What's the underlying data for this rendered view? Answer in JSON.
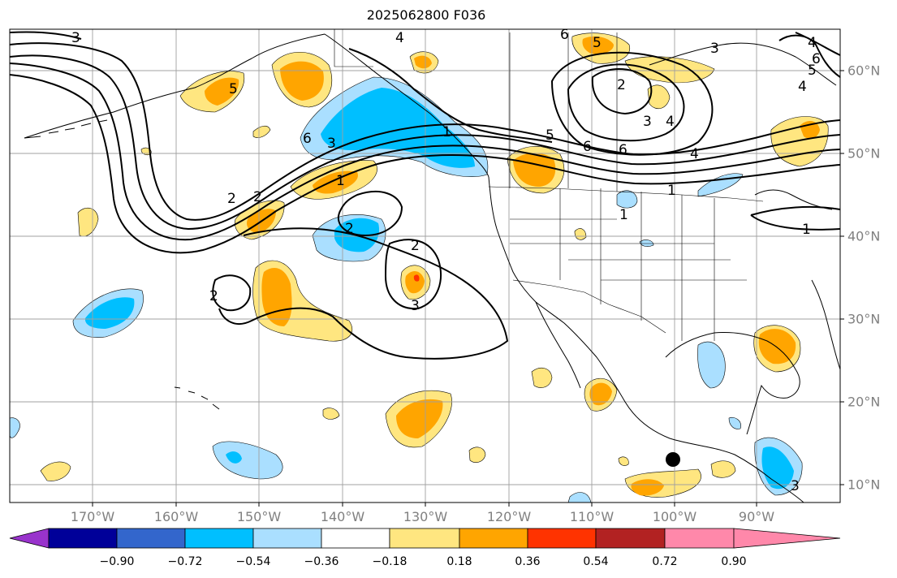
{
  "title": "2025062800 F036",
  "axes": {
    "lon_labels": [
      "170°W",
      "160°W",
      "150°W",
      "140°W",
      "130°W",
      "120°W",
      "110°W",
      "100°W",
      "90°W"
    ],
    "lat_labels": [
      "60°N",
      "50°N",
      "40°N",
      "30°N",
      "20°N",
      "10°N"
    ]
  },
  "colorbar": {
    "tick_labels": [
      "−0.90",
      "−0.72",
      "−0.54",
      "−0.36",
      "−0.18",
      "0.18",
      "0.36",
      "0.54",
      "0.72",
      "0.90"
    ],
    "colors": [
      "#9933cc",
      "#000099",
      "#3366cc",
      "#00bfff",
      "#aadfff",
      "#ffffff",
      "#ffe680",
      "#ffa500",
      "#ff3300",
      "#b22222",
      "#ff88aa"
    ]
  },
  "contour_labels": [
    "3",
    "4",
    "6",
    "5",
    "3",
    "4",
    "5",
    "6",
    "4",
    "2",
    "3",
    "4",
    "5",
    "6",
    "6",
    "5",
    "4",
    "3",
    "2",
    "1",
    "1",
    "1",
    "1",
    "2",
    "2",
    "2",
    "3",
    "2",
    "6",
    "3",
    "1"
  ],
  "marker": {
    "lon": -100,
    "lat": 13,
    "color": "#000000"
  },
  "grid": true,
  "shading_colors": {
    "pos_weak": "#ffe680",
    "pos_mid": "#ffa500",
    "pos_strong": "#ff3300",
    "neg_weak": "#aadfff",
    "neg_mid": "#00bfff"
  }
}
